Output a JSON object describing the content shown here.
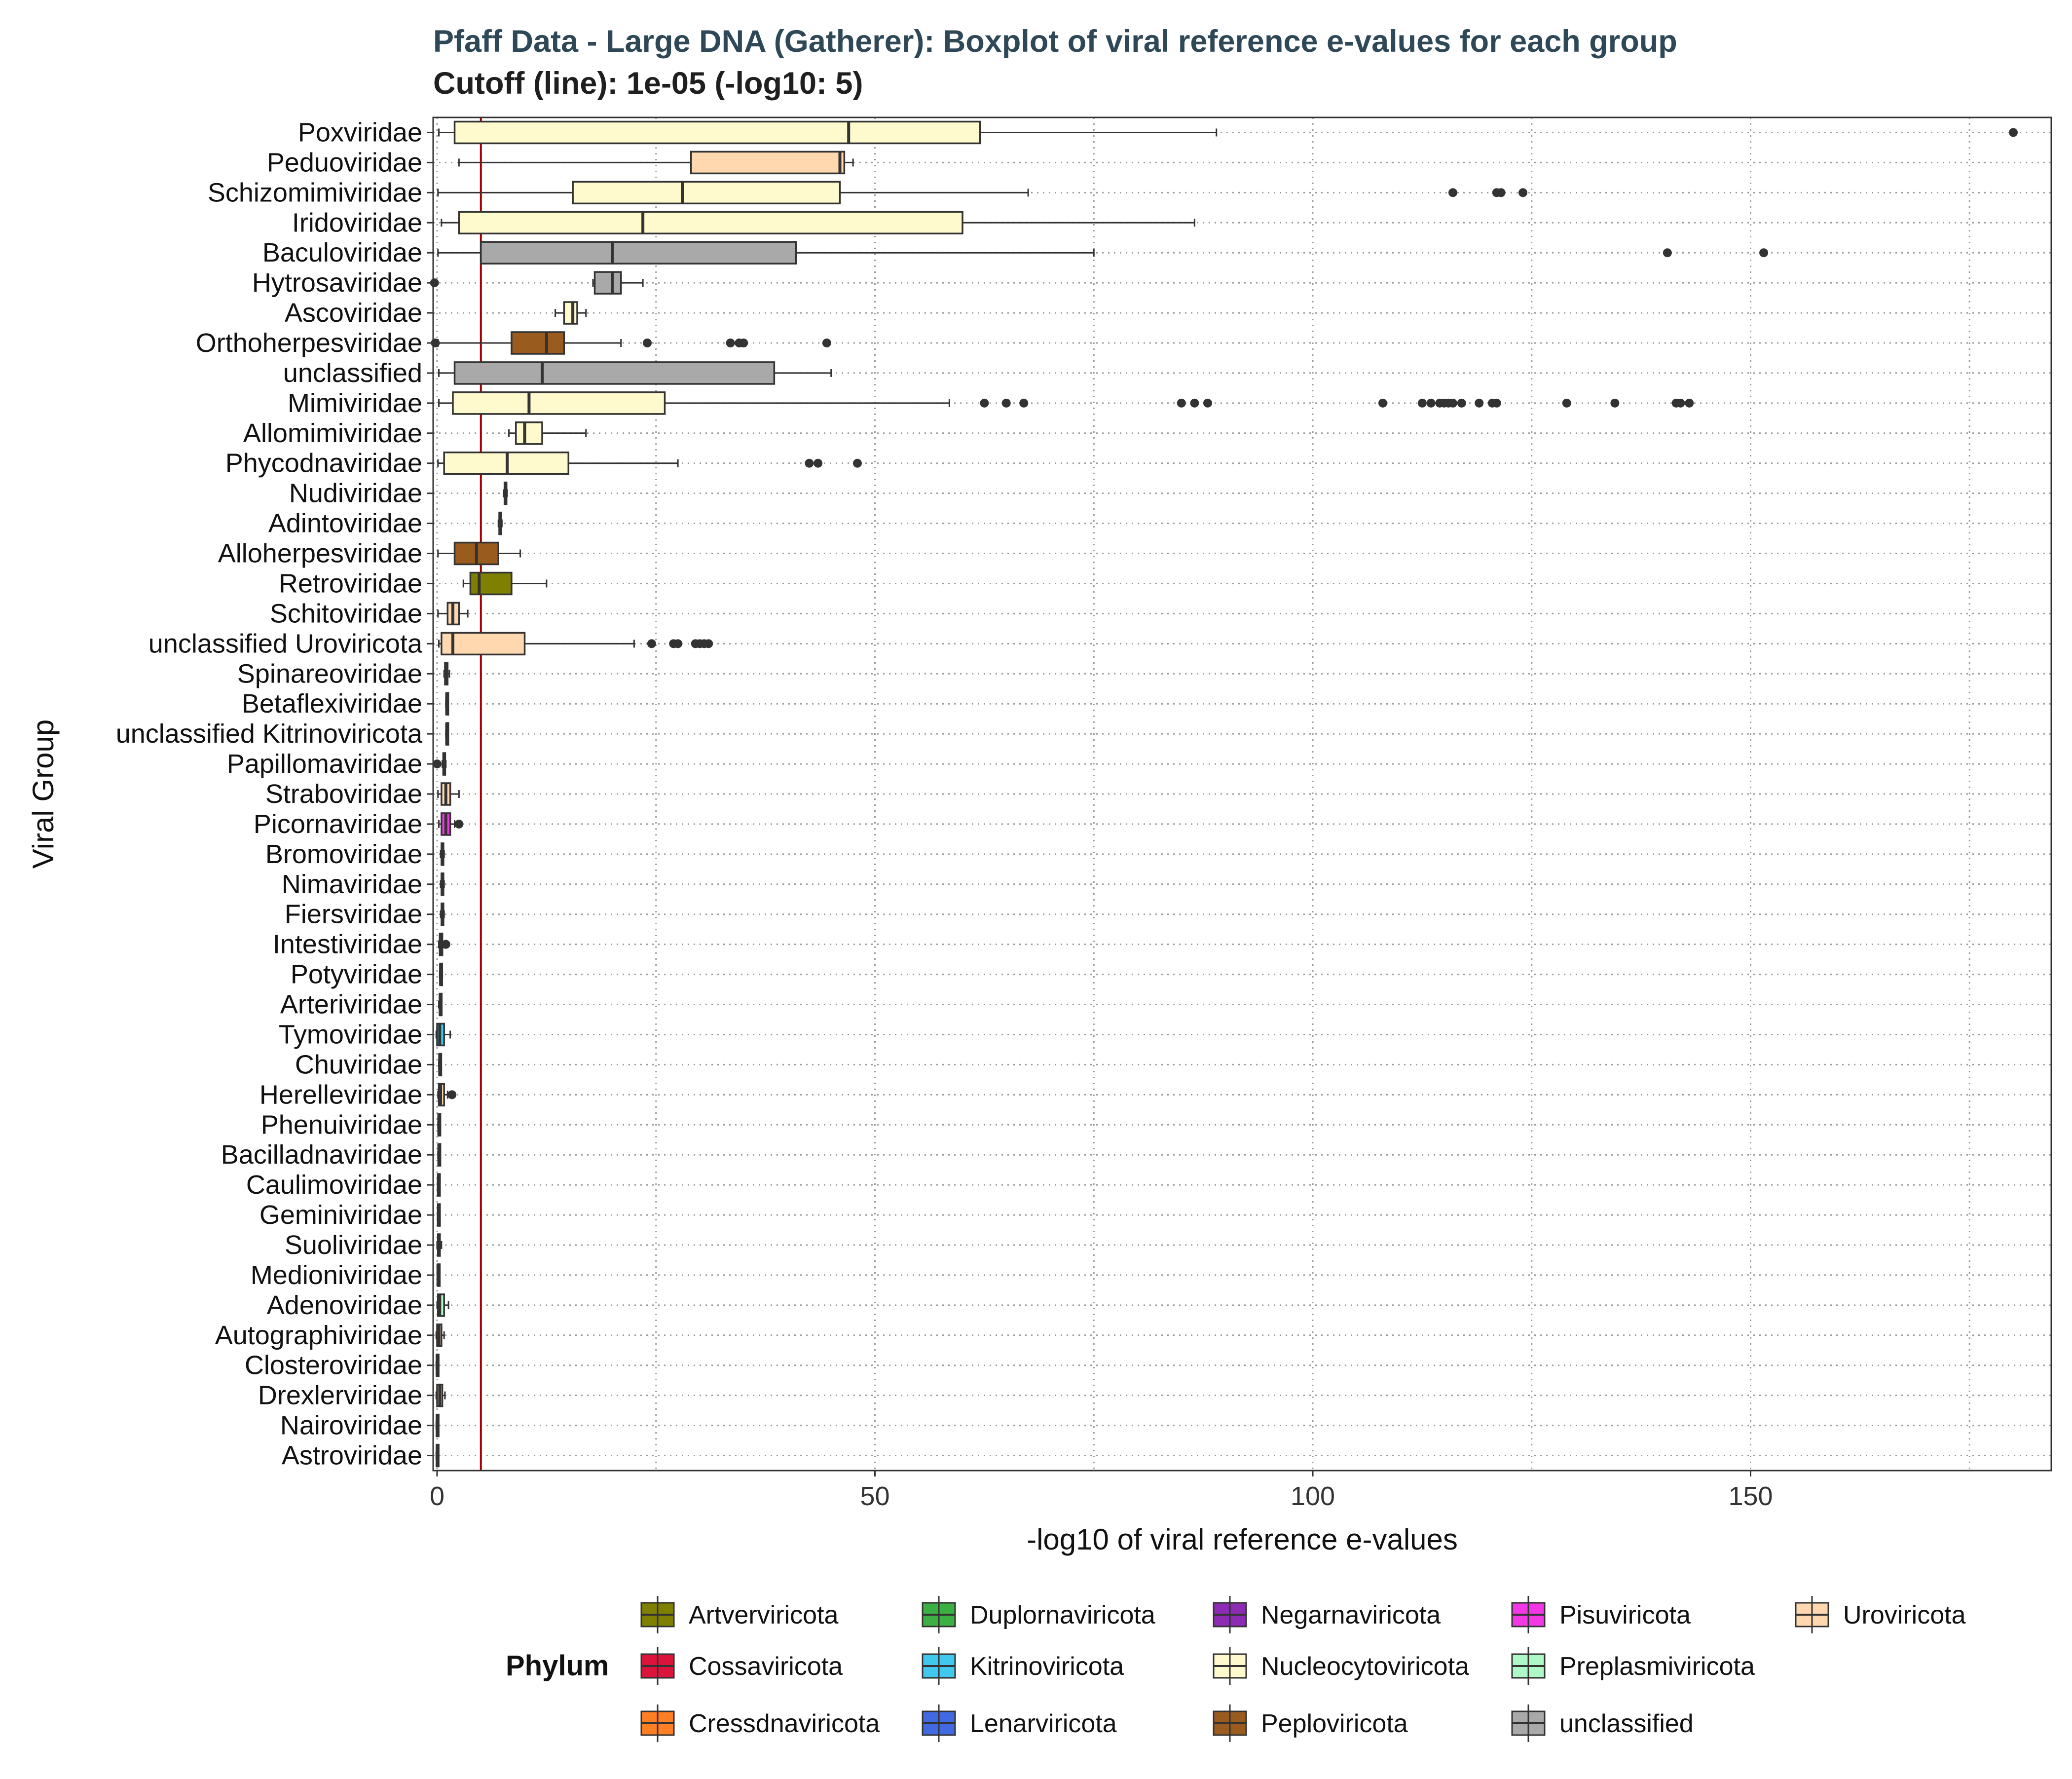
{
  "chart_data": {
    "type": "boxplot",
    "title": "Pfaff Data - Large DNA (Gatherer): Boxplot of viral reference e-values for each group",
    "subtitle": "Cutoff (line): 1e-05 (-log10: 5)",
    "xlabel": "-log10 of viral reference e-values",
    "ylabel": "Viral Group",
    "xlim": [
      -0.5,
      185
    ],
    "xticks": [
      0,
      50,
      100,
      150
    ],
    "cutoff": 5,
    "grid": "dotted",
    "legend_title": "Phylum",
    "legend_position": "bottom",
    "legend": [
      {
        "name": "Artverviricota",
        "color": "#808000"
      },
      {
        "name": "Cossaviricota",
        "color": "#DC143C"
      },
      {
        "name": "Cressdnaviricota",
        "color": "#FF7F24"
      },
      {
        "name": "Duplornaviricota",
        "color": "#3CB043"
      },
      {
        "name": "Kitrinoviricota",
        "color": "#40C8EE"
      },
      {
        "name": "Lenarviricota",
        "color": "#4169E1"
      },
      {
        "name": "Negarnaviricota",
        "color": "#8E2BB5"
      },
      {
        "name": "Nucleocytoviricota",
        "color": "#FFFACD"
      },
      {
        "name": "Peploviricota",
        "color": "#9A5B1F"
      },
      {
        "name": "Pisuviricota",
        "color": "#F238E4"
      },
      {
        "name": "Preplasmiviricota",
        "color": "#AEF8C8"
      },
      {
        "name": "unclassified",
        "color": "#A9A9A9"
      },
      {
        "name": "Uroviricota",
        "color": "#FFD8B0"
      }
    ],
    "groups": [
      {
        "name": "Poxviridae",
        "color": "#FFFACD",
        "whisker_low": 0.2,
        "q1": 2,
        "median": 47,
        "q3": 62,
        "whisker_high": 89,
        "outliers": [
          180
        ]
      },
      {
        "name": "Peduoviridae",
        "color": "#FFD8B0",
        "whisker_low": 2.5,
        "q1": 29,
        "median": 46,
        "q3": 46.5,
        "whisker_high": 47.5,
        "outliers": []
      },
      {
        "name": "Schizomimiviridae",
        "color": "#FFFACD",
        "whisker_low": 0.1,
        "q1": 15.5,
        "median": 28,
        "q3": 46,
        "whisker_high": 67.5,
        "outliers": [
          116,
          121,
          121.5,
          124
        ]
      },
      {
        "name": "Iridoviridae",
        "color": "#FFFACD",
        "whisker_low": 0.5,
        "q1": 2.5,
        "median": 23.5,
        "q3": 60,
        "whisker_high": 86.5,
        "outliers": []
      },
      {
        "name": "Baculoviridae",
        "color": "#A9A9A9",
        "whisker_low": 0.1,
        "q1": 5,
        "median": 20,
        "q3": 41,
        "whisker_high": 75,
        "outliers": [
          140.5,
          151.5
        ]
      },
      {
        "name": "Hytrosaviridae",
        "color": "#A9A9A9",
        "whisker_low": 17.8,
        "q1": 18,
        "median": 20,
        "q3": 21,
        "whisker_high": 23.5,
        "outliers": [
          -0.3
        ]
      },
      {
        "name": "Ascoviridae",
        "color": "#FFFACD",
        "whisker_low": 13.5,
        "q1": 14.5,
        "median": 15.5,
        "q3": 16,
        "whisker_high": 17,
        "outliers": []
      },
      {
        "name": "Orthoherpesviridae",
        "color": "#9A5B1F",
        "whisker_low": 0.1,
        "q1": 8.5,
        "median": 12.5,
        "q3": 14.5,
        "whisker_high": 21,
        "outliers": [
          -0.2,
          24,
          33.5,
          34.5,
          35,
          44.5
        ]
      },
      {
        "name": "unclassified",
        "color": "#A9A9A9",
        "whisker_low": 0.2,
        "q1": 2,
        "median": 12,
        "q3": 38.5,
        "whisker_high": 45,
        "outliers": []
      },
      {
        "name": "Mimiviridae",
        "color": "#FFFACD",
        "whisker_low": 0.2,
        "q1": 1.8,
        "median": 10.5,
        "q3": 26,
        "whisker_high": 58.5,
        "outliers": [
          62.5,
          65,
          67,
          85,
          86.5,
          88,
          108,
          112.5,
          113.5,
          114.5,
          115,
          115.5,
          116,
          117,
          119,
          120.5,
          121,
          129,
          134.5,
          141.5,
          142,
          143
        ]
      },
      {
        "name": "Allomimiviridae",
        "color": "#FFFACD",
        "whisker_low": 8.2,
        "q1": 9,
        "median": 10,
        "q3": 12,
        "whisker_high": 17,
        "outliers": []
      },
      {
        "name": "Phycodnaviridae",
        "color": "#FFFACD",
        "whisker_low": 0.1,
        "q1": 0.8,
        "median": 8,
        "q3": 15,
        "whisker_high": 27.5,
        "outliers": [
          42.5,
          43.5,
          48
        ]
      },
      {
        "name": "Nudiviridae",
        "color": "#FFFACD",
        "whisker_low": 7.6,
        "q1": 7.7,
        "median": 7.8,
        "q3": 7.9,
        "whisker_high": 8,
        "outliers": []
      },
      {
        "name": "Adintoviridae",
        "color": "#FFFACD",
        "whisker_low": 7,
        "q1": 7.1,
        "median": 7.2,
        "q3": 7.3,
        "whisker_high": 7.4,
        "outliers": []
      },
      {
        "name": "Alloherpesviridae",
        "color": "#9A5B1F",
        "whisker_low": 0.1,
        "q1": 2,
        "median": 4.5,
        "q3": 7,
        "whisker_high": 9.5,
        "outliers": []
      },
      {
        "name": "Retroviridae",
        "color": "#808000",
        "whisker_low": 3,
        "q1": 3.8,
        "median": 4.8,
        "q3": 8.5,
        "whisker_high": 12.5,
        "outliers": []
      },
      {
        "name": "Schitoviridae",
        "color": "#FFD8B0",
        "whisker_low": 0.1,
        "q1": 1.2,
        "median": 1.8,
        "q3": 2.5,
        "whisker_high": 3.5,
        "outliers": []
      },
      {
        "name": "unclassified Uroviricota",
        "color": "#FFD8B0",
        "whisker_low": 0.2,
        "q1": 0.5,
        "median": 1.8,
        "q3": 10,
        "whisker_high": 22.5,
        "outliers": [
          24.5,
          27,
          27.5,
          29.5,
          30,
          30.5,
          31
        ]
      },
      {
        "name": "Spinareoviridae",
        "color": "#3CB043",
        "whisker_low": 0.8,
        "q1": 0.9,
        "median": 1,
        "q3": 1.2,
        "whisker_high": 1.4,
        "outliers": []
      },
      {
        "name": "Betaflexiviridae",
        "color": "#40C8EE",
        "whisker_low": 1,
        "q1": 1.05,
        "median": 1.1,
        "q3": 1.15,
        "whisker_high": 1.2,
        "outliers": []
      },
      {
        "name": "unclassified Kitrinoviricota",
        "color": "#40C8EE",
        "whisker_low": 1,
        "q1": 1.05,
        "median": 1.1,
        "q3": 1.15,
        "whisker_high": 1.2,
        "outliers": []
      },
      {
        "name": "Papillomaviridae",
        "color": "#DC143C",
        "whisker_low": 0.6,
        "q1": 0.7,
        "median": 0.8,
        "q3": 0.9,
        "whisker_high": 1,
        "outliers": [
          0
        ]
      },
      {
        "name": "Straboviridae",
        "color": "#FFD8B0",
        "whisker_low": 0.1,
        "q1": 0.5,
        "median": 1,
        "q3": 1.5,
        "whisker_high": 2.5,
        "outliers": []
      },
      {
        "name": "Picornaviridae",
        "color": "#F238E4",
        "whisker_low": 0.2,
        "q1": 0.5,
        "median": 1,
        "q3": 1.5,
        "whisker_high": 2,
        "outliers": [
          2.5
        ]
      },
      {
        "name": "Bromoviridae",
        "color": "#40C8EE",
        "whisker_low": 0.4,
        "q1": 0.5,
        "median": 0.6,
        "q3": 0.7,
        "whisker_high": 0.8,
        "outliers": []
      },
      {
        "name": "Nimaviridae",
        "color": "#A9A9A9",
        "whisker_low": 0.4,
        "q1": 0.5,
        "median": 0.6,
        "q3": 0.7,
        "whisker_high": 0.8,
        "outliers": []
      },
      {
        "name": "Fiersviridae",
        "color": "#4169E1",
        "whisker_low": 0.4,
        "q1": 0.5,
        "median": 0.6,
        "q3": 0.7,
        "whisker_high": 0.8,
        "outliers": []
      },
      {
        "name": "Intestiviridae",
        "color": "#FFD8B0",
        "whisker_low": 0.2,
        "q1": 0.3,
        "median": 0.4,
        "q3": 0.6,
        "whisker_high": 0.8,
        "outliers": [
          1
        ]
      },
      {
        "name": "Potyviridae",
        "color": "#F238E4",
        "whisker_low": 0.3,
        "q1": 0.35,
        "median": 0.4,
        "q3": 0.5,
        "whisker_high": 0.6,
        "outliers": []
      },
      {
        "name": "Arteriviridae",
        "color": "#F238E4",
        "whisker_low": 0.2,
        "q1": 0.3,
        "median": 0.35,
        "q3": 0.45,
        "whisker_high": 0.5,
        "outliers": []
      },
      {
        "name": "Tymoviridae",
        "color": "#40C8EE",
        "whisker_low": -0.1,
        "q1": 0,
        "median": 0.3,
        "q3": 0.8,
        "whisker_high": 1.5,
        "outliers": []
      },
      {
        "name": "Chuviridae",
        "color": "#8E2BB5",
        "whisker_low": 0.2,
        "q1": 0.25,
        "median": 0.3,
        "q3": 0.35,
        "whisker_high": 0.4,
        "outliers": []
      },
      {
        "name": "Herelleviridae",
        "color": "#FFD8B0",
        "whisker_low": 0.1,
        "q1": 0.2,
        "median": 0.4,
        "q3": 0.8,
        "whisker_high": 1.2,
        "outliers": [
          1.7
        ]
      },
      {
        "name": "Phenuiviridae",
        "color": "#8E2BB5",
        "whisker_low": 0.1,
        "q1": 0.15,
        "median": 0.2,
        "q3": 0.25,
        "whisker_high": 0.3,
        "outliers": []
      },
      {
        "name": "Bacilladnaviridae",
        "color": "#FF7F24",
        "whisker_low": 0.1,
        "q1": 0.15,
        "median": 0.2,
        "q3": 0.25,
        "whisker_high": 0.3,
        "outliers": []
      },
      {
        "name": "Caulimoviridae",
        "color": "#808000",
        "whisker_low": 0.05,
        "q1": 0.1,
        "median": 0.15,
        "q3": 0.2,
        "whisker_high": 0.25,
        "outliers": []
      },
      {
        "name": "Geminiviridae",
        "color": "#FF7F24",
        "whisker_low": 0.05,
        "q1": 0.1,
        "median": 0.15,
        "q3": 0.2,
        "whisker_high": 0.25,
        "outliers": []
      },
      {
        "name": "Suoliviridae",
        "color": "#FFD8B0",
        "whisker_low": 0,
        "q1": 0.1,
        "median": 0.2,
        "q3": 0.3,
        "whisker_high": 0.5,
        "outliers": []
      },
      {
        "name": "Medioniviridae",
        "color": "#A9A9A9",
        "whisker_low": 0.05,
        "q1": 0.08,
        "median": 0.1,
        "q3": 0.13,
        "whisker_high": 0.15,
        "outliers": []
      },
      {
        "name": "Adenoviridae",
        "color": "#AEF8C8",
        "whisker_low": 0,
        "q1": 0.1,
        "median": 0.3,
        "q3": 0.8,
        "whisker_high": 1.3,
        "outliers": []
      },
      {
        "name": "Autographiviridae",
        "color": "#FFD8B0",
        "whisker_low": -0.1,
        "q1": 0,
        "median": 0.2,
        "q3": 0.5,
        "whisker_high": 0.8,
        "outliers": []
      },
      {
        "name": "Closteroviridae",
        "color": "#40C8EE",
        "whisker_low": -0.1,
        "q1": -0.05,
        "median": 0,
        "q3": 0.05,
        "whisker_high": 0.1,
        "outliers": []
      },
      {
        "name": "Drexlerviridae",
        "color": "#FFD8B0",
        "whisker_low": -0.1,
        "q1": 0,
        "median": 0.3,
        "q3": 0.6,
        "whisker_high": 0.9,
        "outliers": []
      },
      {
        "name": "Nairoviridae",
        "color": "#8E2BB5",
        "whisker_low": -0.1,
        "q1": -0.05,
        "median": 0,
        "q3": 0.05,
        "whisker_high": 0.1,
        "outliers": []
      },
      {
        "name": "Astroviridae",
        "color": "#F238E4",
        "whisker_low": -0.1,
        "q1": -0.05,
        "median": 0,
        "q3": 0.05,
        "whisker_high": 0.1,
        "outliers": []
      }
    ]
  }
}
